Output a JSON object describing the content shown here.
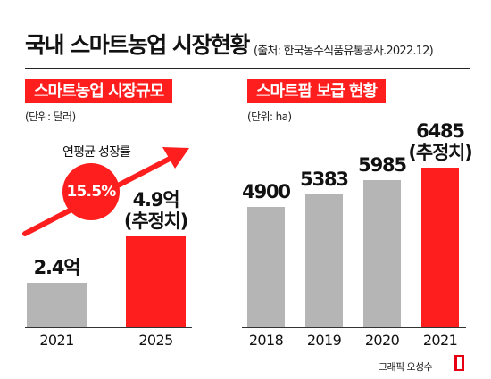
{
  "title": "국내 스마트농업 시장현황",
  "source": "(출처: 한국농수식품유통공사.2022.12)",
  "credit": "그래픽 오성수",
  "colors": {
    "accent": "#ff1e1e",
    "bar_gray": "#b5b5b5",
    "text": "#111111"
  },
  "chart_data": [
    {
      "type": "bar",
      "title": "스마트농업 시장규모",
      "unit": "(단위: 달러)",
      "categories": [
        "2021",
        "2025"
      ],
      "values": [
        2.4,
        4.9
      ],
      "value_labels": [
        "2.4억",
        "4.9억"
      ],
      "value_notes": [
        "",
        "(추정치)"
      ],
      "highlight": [
        false,
        true
      ],
      "annotation": {
        "label": "연평균 성장률",
        "value": "15.5%"
      },
      "ylim": [
        0,
        10
      ]
    },
    {
      "type": "bar",
      "title": "스마트팜 보급 현황",
      "unit": "(단위: ha)",
      "categories": [
        "2018",
        "2019",
        "2020",
        "2021"
      ],
      "values": [
        4900,
        5383,
        5985,
        6485
      ],
      "value_labels": [
        "4900",
        "5383",
        "5985",
        "6485"
      ],
      "value_notes": [
        "",
        "",
        "",
        "(추정치)"
      ],
      "highlight": [
        false,
        false,
        false,
        true
      ],
      "ylim": [
        0,
        7500
      ]
    }
  ]
}
